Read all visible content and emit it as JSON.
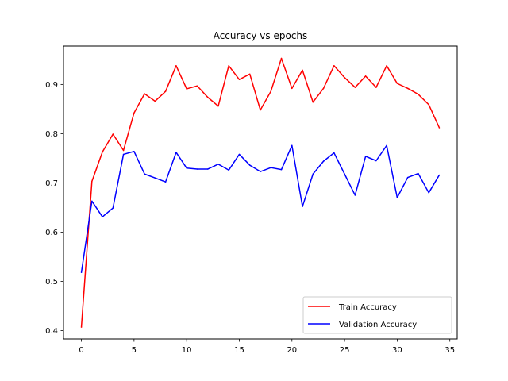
{
  "chart_data": {
    "type": "line",
    "title": "Accuracy vs epochs",
    "xlabel": "",
    "ylabel": "",
    "xlim": [
      -1.7,
      35.7
    ],
    "ylim": [
      0.383,
      0.978
    ],
    "xticks": [
      0,
      5,
      10,
      15,
      20,
      25,
      30,
      35
    ],
    "yticks": [
      0.4,
      0.5,
      0.6,
      0.7,
      0.8,
      0.9
    ],
    "ytick_labels": [
      "0.4",
      "0.5",
      "0.6",
      "0.7",
      "0.8",
      "0.9"
    ],
    "grid": false,
    "legend_position": "lower-right",
    "x": [
      0,
      1,
      2,
      3,
      4,
      5,
      6,
      7,
      8,
      9,
      10,
      11,
      12,
      13,
      14,
      15,
      16,
      17,
      18,
      19,
      20,
      21,
      22,
      23,
      24,
      25,
      26,
      27,
      28,
      29,
      30,
      31,
      32,
      33,
      34
    ],
    "series": [
      {
        "name": "Train Accuracy",
        "color": "#ff0000",
        "values": [
          0.407,
          0.703,
          0.763,
          0.799,
          0.766,
          0.842,
          0.881,
          0.866,
          0.886,
          0.938,
          0.891,
          0.897,
          0.874,
          0.856,
          0.938,
          0.91,
          0.921,
          0.848,
          0.886,
          0.953,
          0.892,
          0.929,
          0.864,
          0.892,
          0.938,
          0.914,
          0.894,
          0.917,
          0.894,
          0.938,
          0.902,
          0.892,
          0.88,
          0.859,
          0.812
        ]
      },
      {
        "name": "Validation Accuracy",
        "color": "#0000ff",
        "values": [
          0.518,
          0.663,
          0.631,
          0.649,
          0.758,
          0.764,
          0.718,
          0.71,
          0.702,
          0.762,
          0.73,
          0.728,
          0.728,
          0.738,
          0.726,
          0.758,
          0.736,
          0.723,
          0.731,
          0.727,
          0.776,
          0.652,
          0.718,
          0.744,
          0.761,
          0.718,
          0.675,
          0.754,
          0.745,
          0.776,
          0.67,
          0.711,
          0.719,
          0.68,
          0.716
        ]
      }
    ]
  }
}
